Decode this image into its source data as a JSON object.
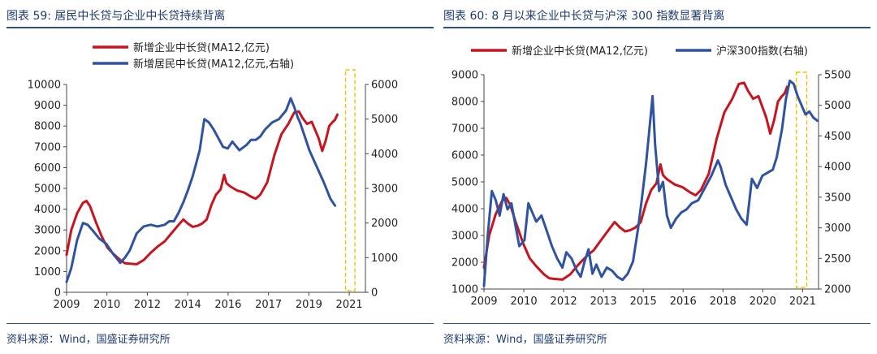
{
  "panels": [
    {
      "title": "图表 59: 居民中长贷与企业中长贷持续背离",
      "source": "资料来源：Wind，国盛证券研究所"
    },
    {
      "title": "图表 60: 8 月以来企业中长贷与沪深 300 指数显著背离",
      "source": "资料来源：Wind，国盛证券研究所"
    }
  ],
  "chart_data": [
    {
      "type": "line",
      "title": "",
      "x_ticks": [
        "2009",
        "2010",
        "2012",
        "2014",
        "2016",
        "2017",
        "2019",
        "2021"
      ],
      "xlim": [
        2009.0,
        2021.8
      ],
      "ylim_left": [
        0,
        10000
      ],
      "yticks_left": [
        0,
        1000,
        2000,
        3000,
        4000,
        5000,
        6000,
        7000,
        8000,
        9000,
        10000
      ],
      "ylim_right": [
        0,
        6000
      ],
      "yticks_right": [
        0,
        1000,
        2000,
        3000,
        4000,
        5000,
        6000
      ],
      "grid": false,
      "legend": "top",
      "highlight": {
        "x_from": 2020.95,
        "x_to": 2021.35,
        "color": "#f2c200",
        "style": "dashed"
      },
      "series": [
        {
          "name": "新增企业中长贷(MA12,亿元)",
          "axis": "left",
          "color": "#c8141e",
          "points": [
            [
              2009.0,
              1800
            ],
            [
              2009.2,
              3000
            ],
            [
              2009.45,
              3800
            ],
            [
              2009.7,
              4300
            ],
            [
              2009.85,
              4400
            ],
            [
              2010.0,
              4150
            ],
            [
              2010.25,
              3400
            ],
            [
              2010.5,
              2700
            ],
            [
              2010.75,
              2150
            ],
            [
              2011.0,
              1850
            ],
            [
              2011.3,
              1550
            ],
            [
              2011.5,
              1400
            ],
            [
              2011.7,
              1380
            ],
            [
              2012.0,
              1350
            ],
            [
              2012.3,
              1550
            ],
            [
              2012.6,
              1900
            ],
            [
              2012.9,
              2200
            ],
            [
              2013.2,
              2450
            ],
            [
              2013.5,
              2850
            ],
            [
              2013.8,
              3250
            ],
            [
              2014.0,
              3500
            ],
            [
              2014.2,
              3300
            ],
            [
              2014.4,
              3150
            ],
            [
              2014.6,
              3200
            ],
            [
              2014.8,
              3300
            ],
            [
              2015.0,
              3500
            ],
            [
              2015.2,
              4200
            ],
            [
              2015.4,
              4700
            ],
            [
              2015.6,
              4950
            ],
            [
              2015.75,
              5650
            ],
            [
              2015.85,
              5250
            ],
            [
              2016.0,
              5100
            ],
            [
              2016.3,
              4900
            ],
            [
              2016.6,
              4800
            ],
            [
              2016.9,
              4600
            ],
            [
              2017.1,
              4500
            ],
            [
              2017.3,
              4700
            ],
            [
              2017.6,
              5300
            ],
            [
              2017.9,
              6600
            ],
            [
              2018.2,
              7600
            ],
            [
              2018.5,
              8100
            ],
            [
              2018.75,
              8650
            ],
            [
              2018.95,
              8700
            ],
            [
              2019.1,
              8400
            ],
            [
              2019.3,
              8100
            ],
            [
              2019.5,
              8200
            ],
            [
              2019.8,
              7400
            ],
            [
              2019.95,
              6800
            ],
            [
              2020.1,
              7300
            ],
            [
              2020.25,
              8000
            ],
            [
              2020.4,
              8200
            ],
            [
              2020.5,
              8300
            ],
            [
              2020.6,
              8550
            ]
          ]
        },
        {
          "name": "新增居民中长贷(MA12,亿元,右轴)",
          "axis": "right",
          "color": "#2f53a1",
          "points": [
            [
              2009.0,
              300
            ],
            [
              2009.2,
              700
            ],
            [
              2009.45,
              1500
            ],
            [
              2009.7,
              2000
            ],
            [
              2009.9,
              1950
            ],
            [
              2010.1,
              1800
            ],
            [
              2010.4,
              1550
            ],
            [
              2010.7,
              1400
            ],
            [
              2011.0,
              1100
            ],
            [
              2011.3,
              850
            ],
            [
              2011.5,
              1000
            ],
            [
              2011.7,
              1200
            ],
            [
              2012.0,
              1700
            ],
            [
              2012.3,
              1900
            ],
            [
              2012.6,
              1950
            ],
            [
              2012.9,
              1900
            ],
            [
              2013.2,
              1950
            ],
            [
              2013.4,
              2050
            ],
            [
              2013.6,
              2050
            ],
            [
              2013.8,
              2300
            ],
            [
              2014.0,
              2600
            ],
            [
              2014.2,
              2950
            ],
            [
              2014.4,
              3350
            ],
            [
              2014.7,
              4100
            ],
            [
              2014.9,
              5000
            ],
            [
              2015.1,
              4900
            ],
            [
              2015.3,
              4700
            ],
            [
              2015.5,
              4450
            ],
            [
              2015.7,
              4200
            ],
            [
              2015.9,
              4150
            ],
            [
              2016.1,
              4350
            ],
            [
              2016.4,
              4100
            ],
            [
              2016.7,
              4250
            ],
            [
              2016.9,
              4400
            ],
            [
              2017.1,
              4400
            ],
            [
              2017.3,
              4500
            ],
            [
              2017.5,
              4700
            ],
            [
              2017.8,
              4900
            ],
            [
              2018.1,
              5000
            ],
            [
              2018.4,
              5250
            ],
            [
              2018.6,
              5600
            ],
            [
              2018.75,
              5350
            ],
            [
              2018.9,
              5050
            ],
            [
              2019.0,
              4900
            ],
            [
              2019.2,
              4500
            ],
            [
              2019.4,
              4100
            ],
            [
              2019.6,
              3800
            ],
            [
              2019.8,
              3500
            ],
            [
              2020.0,
              3200
            ],
            [
              2020.3,
              2700
            ],
            [
              2020.5,
              2500
            ]
          ]
        }
      ]
    },
    {
      "type": "line",
      "title": "",
      "x_ticks": [
        "2009",
        "2010",
        "2012",
        "2013",
        "2015",
        "2016",
        "2018",
        "2020",
        "2021"
      ],
      "xlim": [
        2009.0,
        2021.8
      ],
      "ylim_left": [
        1000,
        9000
      ],
      "yticks_left": [
        1000,
        2000,
        3000,
        4000,
        5000,
        6000,
        7000,
        8000,
        9000
      ],
      "ylim_right": [
        2000,
        5500
      ],
      "yticks_right": [
        2000,
        2500,
        3000,
        3500,
        4000,
        4500,
        5000,
        5500
      ],
      "grid": false,
      "legend": "top",
      "highlight": {
        "x_from": 2020.95,
        "x_to": 2021.35,
        "color": "#f2c200",
        "style": "dashed"
      },
      "series": [
        {
          "name": "新增企业中长贷(MA12,亿元)",
          "axis": "left",
          "color": "#c8141e",
          "points": [
            [
              2009.0,
              1800
            ],
            [
              2009.2,
              3000
            ],
            [
              2009.45,
              3800
            ],
            [
              2009.7,
              4300
            ],
            [
              2009.85,
              4400
            ],
            [
              2010.0,
              4150
            ],
            [
              2010.25,
              3400
            ],
            [
              2010.5,
              2700
            ],
            [
              2010.75,
              2150
            ],
            [
              2011.0,
              1850
            ],
            [
              2011.3,
              1550
            ],
            [
              2011.5,
              1400
            ],
            [
              2011.7,
              1380
            ],
            [
              2012.0,
              1350
            ],
            [
              2012.3,
              1550
            ],
            [
              2012.6,
              1900
            ],
            [
              2012.9,
              2200
            ],
            [
              2013.2,
              2450
            ],
            [
              2013.5,
              2850
            ],
            [
              2013.8,
              3250
            ],
            [
              2014.0,
              3500
            ],
            [
              2014.2,
              3300
            ],
            [
              2014.4,
              3150
            ],
            [
              2014.6,
              3200
            ],
            [
              2014.8,
              3300
            ],
            [
              2015.0,
              3500
            ],
            [
              2015.2,
              4200
            ],
            [
              2015.4,
              4700
            ],
            [
              2015.6,
              4950
            ],
            [
              2015.75,
              5650
            ],
            [
              2015.85,
              5250
            ],
            [
              2016.0,
              5100
            ],
            [
              2016.3,
              4900
            ],
            [
              2016.6,
              4800
            ],
            [
              2016.9,
              4600
            ],
            [
              2017.1,
              4500
            ],
            [
              2017.3,
              4700
            ],
            [
              2017.6,
              5300
            ],
            [
              2017.9,
              6600
            ],
            [
              2018.2,
              7600
            ],
            [
              2018.5,
              8100
            ],
            [
              2018.75,
              8650
            ],
            [
              2018.95,
              8700
            ],
            [
              2019.1,
              8400
            ],
            [
              2019.3,
              8100
            ],
            [
              2019.5,
              8200
            ],
            [
              2019.8,
              7400
            ],
            [
              2019.95,
              6800
            ],
            [
              2020.1,
              7300
            ],
            [
              2020.25,
              8000
            ],
            [
              2020.4,
              8200
            ],
            [
              2020.5,
              8300
            ],
            [
              2020.6,
              8550
            ]
          ]
        },
        {
          "name": "沪深300指数(右轴)",
          "axis": "right",
          "color": "#2f53a1",
          "points": [
            [
              2009.0,
              2050
            ],
            [
              2009.15,
              2900
            ],
            [
              2009.3,
              3600
            ],
            [
              2009.45,
              3450
            ],
            [
              2009.6,
              3200
            ],
            [
              2009.75,
              3550
            ],
            [
              2009.9,
              3300
            ],
            [
              2010.05,
              3400
            ],
            [
              2010.2,
              3050
            ],
            [
              2010.35,
              2700
            ],
            [
              2010.55,
              2800
            ],
            [
              2010.7,
              3400
            ],
            [
              2010.85,
              3250
            ],
            [
              2011.0,
              3100
            ],
            [
              2011.2,
              3200
            ],
            [
              2011.4,
              2950
            ],
            [
              2011.6,
              2700
            ],
            [
              2011.8,
              2500
            ],
            [
              2012.0,
              2350
            ],
            [
              2012.15,
              2600
            ],
            [
              2012.35,
              2500
            ],
            [
              2012.55,
              2300
            ],
            [
              2012.7,
              2200
            ],
            [
              2012.85,
              2450
            ],
            [
              2013.0,
              2650
            ],
            [
              2013.15,
              2250
            ],
            [
              2013.3,
              2400
            ],
            [
              2013.5,
              2200
            ],
            [
              2013.7,
              2350
            ],
            [
              2013.9,
              2300
            ],
            [
              2014.1,
              2200
            ],
            [
              2014.3,
              2150
            ],
            [
              2014.5,
              2250
            ],
            [
              2014.7,
              2450
            ],
            [
              2014.9,
              3000
            ],
            [
              2015.05,
              3500
            ],
            [
              2015.2,
              4050
            ],
            [
              2015.35,
              4700
            ],
            [
              2015.45,
              5150
            ],
            [
              2015.55,
              4350
            ],
            [
              2015.7,
              3600
            ],
            [
              2015.85,
              3750
            ],
            [
              2016.0,
              3200
            ],
            [
              2016.15,
              3000
            ],
            [
              2016.35,
              3150
            ],
            [
              2016.55,
              3250
            ],
            [
              2016.75,
              3300
            ],
            [
              2016.95,
              3400
            ],
            [
              2017.2,
              3450
            ],
            [
              2017.45,
              3650
            ],
            [
              2017.7,
              3850
            ],
            [
              2017.95,
              4100
            ],
            [
              2018.05,
              4000
            ],
            [
              2018.25,
              3700
            ],
            [
              2018.45,
              3500
            ],
            [
              2018.65,
              3300
            ],
            [
              2018.85,
              3150
            ],
            [
              2019.05,
              3050
            ],
            [
              2019.25,
              3800
            ],
            [
              2019.45,
              3650
            ],
            [
              2019.65,
              3850
            ],
            [
              2019.85,
              3900
            ],
            [
              2020.05,
              3950
            ],
            [
              2020.2,
              4150
            ],
            [
              2020.4,
              4600
            ],
            [
              2020.55,
              5100
            ],
            [
              2020.7,
              5400
            ],
            [
              2020.85,
              5350
            ],
            [
              2021.0,
              5150
            ],
            [
              2021.15,
              5000
            ],
            [
              2021.3,
              4850
            ],
            [
              2021.45,
              4900
            ],
            [
              2021.6,
              4800
            ],
            [
              2021.75,
              4750
            ]
          ]
        }
      ]
    }
  ]
}
